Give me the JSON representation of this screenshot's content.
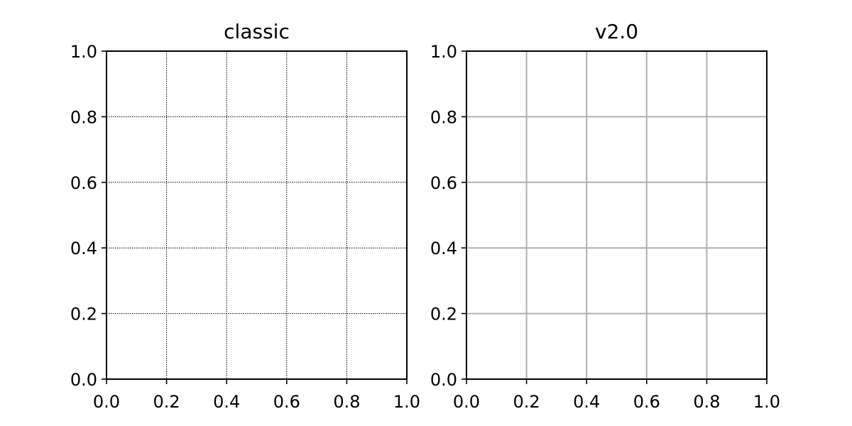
{
  "chart_data": [
    {
      "type": "line",
      "title": "classic",
      "xlabel": "",
      "ylabel": "",
      "xlim": [
        0.0,
        1.0
      ],
      "ylim": [
        0.0,
        1.0
      ],
      "x_ticks": [
        "0.0",
        "0.2",
        "0.4",
        "0.6",
        "0.8",
        "1.0"
      ],
      "y_ticks": [
        "0.0",
        "0.2",
        "0.4",
        "0.6",
        "0.8",
        "1.0"
      ],
      "grid": true,
      "grid_style": "dotted",
      "grid_color": "#000000",
      "series": []
    },
    {
      "type": "line",
      "title": "v2.0",
      "xlabel": "",
      "ylabel": "",
      "xlim": [
        0.0,
        1.0
      ],
      "ylim": [
        0.0,
        1.0
      ],
      "x_ticks": [
        "0.0",
        "0.2",
        "0.4",
        "0.6",
        "0.8",
        "1.0"
      ],
      "y_ticks": [
        "0.0",
        "0.2",
        "0.4",
        "0.6",
        "0.8",
        "1.0"
      ],
      "grid": true,
      "grid_style": "solid",
      "grid_color": "#b0b0b0",
      "series": []
    }
  ]
}
